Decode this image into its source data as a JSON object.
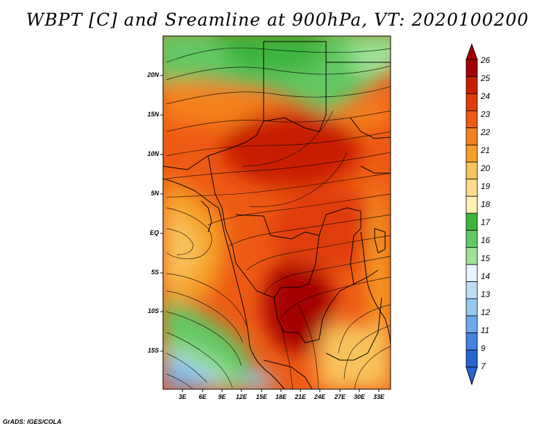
{
  "title": "WBPT [C] and Sreamline at 900hPa, VT: 2020100200",
  "footer": "GrADS: IGES/COLA",
  "map": {
    "lat_labels": [
      "20N",
      "15N",
      "10N",
      "5N",
      "EQ",
      "5S",
      "10S",
      "15S"
    ],
    "lon_labels": [
      "3E",
      "6E",
      "9E",
      "12E",
      "15E",
      "18E",
      "21E",
      "24E",
      "27E",
      "30E",
      "33E"
    ],
    "region": "Central and Eastern Africa",
    "field": "wet-bulb potential temperature with streamlines"
  },
  "colorbar": {
    "labels": [
      "26",
      "25",
      "24",
      "23",
      "22",
      "21",
      "20",
      "19",
      "18",
      "17",
      "16",
      "15",
      "14",
      "13",
      "12",
      "11",
      "9",
      "7"
    ],
    "colors": [
      "#a50000",
      "#c81e00",
      "#e03c0a",
      "#ee5a14",
      "#f5821e",
      "#f5a028",
      "#f8c35a",
      "#fadc8c",
      "#fff0b4",
      "#3cb43c",
      "#64c864",
      "#a0e196",
      "#e6f5ff",
      "#bedcf5",
      "#96c8f0",
      "#6eaaeb",
      "#4682e1",
      "#2864d2"
    ]
  }
}
